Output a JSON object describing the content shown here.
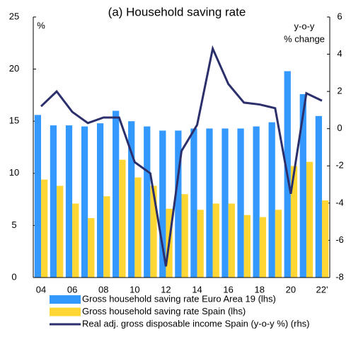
{
  "chart_data": {
    "type": "bar-line",
    "title": "(a) Household saving rate",
    "ylabel": "%",
    "y2label": [
      "y-o-y",
      "% change"
    ],
    "categories": [
      "04",
      null,
      "06",
      null,
      "08",
      null,
      "10",
      null,
      "12",
      null,
      "14",
      null,
      "16",
      null,
      "18",
      null,
      "20",
      null,
      "22'"
    ],
    "ylim": [
      0,
      25
    ],
    "yticks": [
      0,
      5,
      10,
      15,
      20,
      25
    ],
    "y2lim": [
      -8,
      6
    ],
    "y2ticks": [
      -8,
      -6,
      -4,
      -2,
      0,
      2,
      4,
      6
    ],
    "series": [
      {
        "name": "Gross household saving rate Euro Area 19 (lhs)",
        "type": "bar",
        "color": "#3399ff",
        "values": [
          15.6,
          14.6,
          14.6,
          14.5,
          14.8,
          16.0,
          15.0,
          14.5,
          14.1,
          14.1,
          14.3,
          14.3,
          14.3,
          14.3,
          14.5,
          14.9,
          19.8,
          17.6,
          15.5
        ]
      },
      {
        "name": "Gross household saving rate Spain (lhs)",
        "type": "bar",
        "color": "#ffd633",
        "values": [
          9.4,
          8.8,
          7.1,
          5.7,
          7.8,
          11.3,
          9.6,
          8.8,
          6.6,
          8.0,
          6.5,
          7.1,
          7.1,
          6.0,
          5.8,
          6.5,
          10.7,
          11.1,
          7.4
        ]
      },
      {
        "name": "Real adj. gross disposable income Spain (y-o-y %) (rhs)",
        "type": "line",
        "color": "#2b2f6b",
        "axis": "y2",
        "values": [
          1.2,
          2.0,
          0.9,
          0.3,
          0.6,
          0.6,
          -1.8,
          -2.4,
          -7.4,
          -1.2,
          0.2,
          4.3,
          2.4,
          1.4,
          1.3,
          1.1,
          -3.5,
          1.9,
          1.5
        ]
      }
    ]
  }
}
